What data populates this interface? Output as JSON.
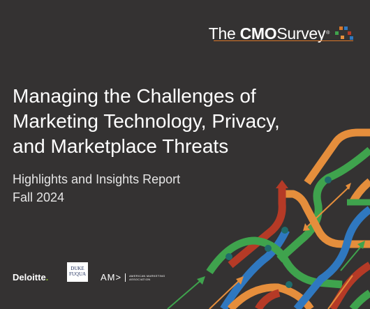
{
  "brand": {
    "logo_the": "The",
    "logo_cmo": "CMO",
    "logo_survey": "Survey",
    "registered_mark": "®"
  },
  "title_lines": [
    "Managing the Challenges of",
    "Marketing Technology, Privacy,",
    "and Marketplace Threats"
  ],
  "subtitle_lines": [
    "Highlights and Insights Report",
    "Fall 2024"
  ],
  "sponsors": {
    "deloitte": "Deloitte",
    "deloitte_dot": ".",
    "duke_line1": "DUKE",
    "duke_line2": "FUQUA",
    "ama_mark": "AM>",
    "ama_line1": "AMERICAN MARKETING",
    "ama_line2": "ASSOCIATION"
  },
  "colors": {
    "background": "#343232",
    "orange": "#e58e3c",
    "green": "#3fa34d",
    "blue": "#2f78c0",
    "red": "#b53a26",
    "teal": "#1f6b6b",
    "ama_rule": "#d9772a"
  }
}
